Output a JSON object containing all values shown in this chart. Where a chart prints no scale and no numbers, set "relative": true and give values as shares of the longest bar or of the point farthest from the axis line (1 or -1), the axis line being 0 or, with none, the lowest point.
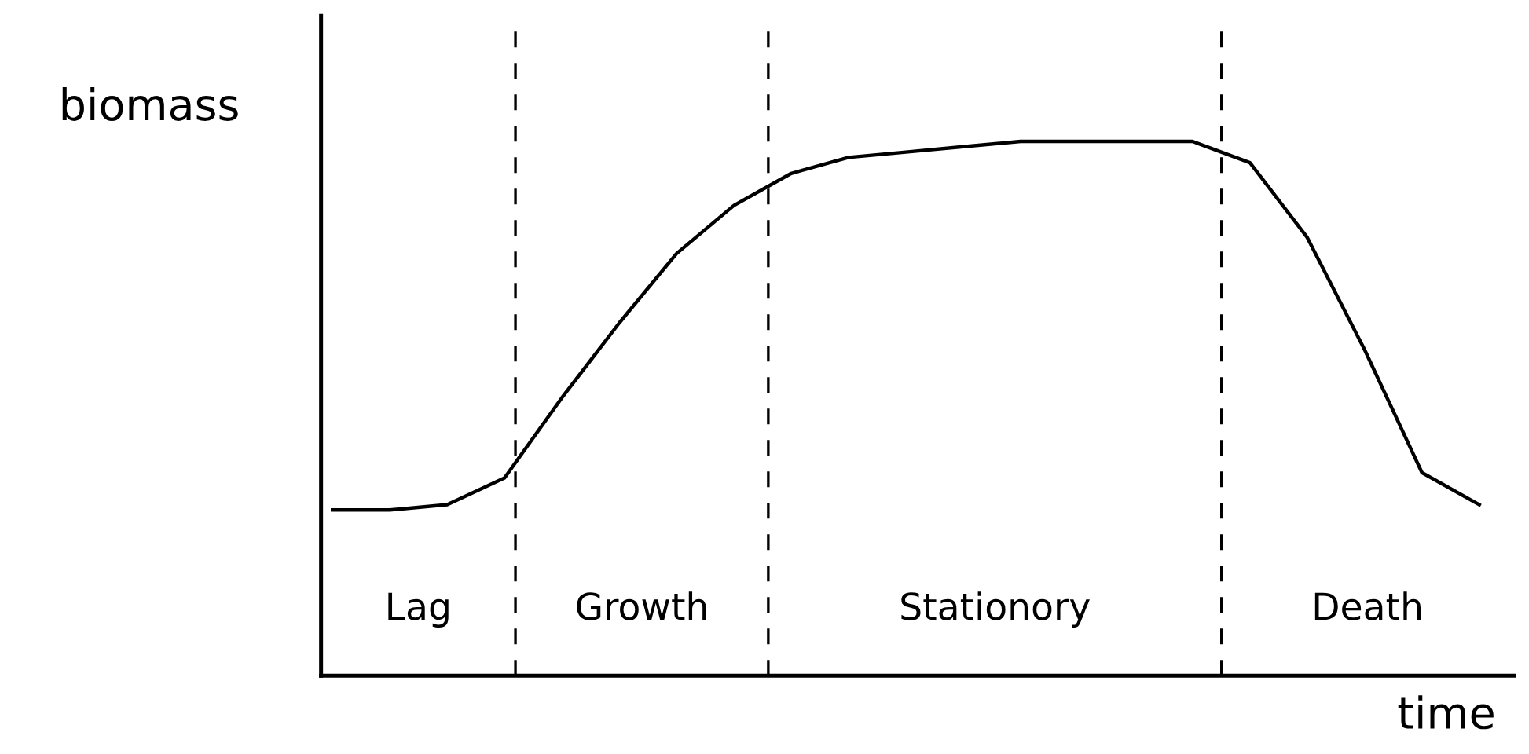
{
  "chart_data": {
    "type": "line",
    "relative": true,
    "xlabel": "time",
    "ylabel": "biomass",
    "categories": [
      null,
      null,
      null,
      null,
      null,
      null,
      null,
      null,
      null,
      null,
      null,
      null,
      null,
      null,
      null,
      null,
      null,
      null,
      null,
      null,
      null
    ],
    "series": [
      {
        "color": "#000000",
        "values": [
          0.31,
          0.31,
          0.32,
          0.37,
          0.52,
          0.66,
          0.79,
          0.88,
          0.94,
          0.97,
          0.98,
          0.99,
          1.0,
          1.0,
          1.0,
          1.0,
          0.96,
          0.82,
          0.61,
          0.38,
          0.32
        ]
      }
    ],
    "annotations": [
      "Lag",
      "Growth",
      "Stationory",
      "Death"
    ],
    "grid": false,
    "legend": false,
    "marker": "none",
    "line_style": "solid"
  }
}
